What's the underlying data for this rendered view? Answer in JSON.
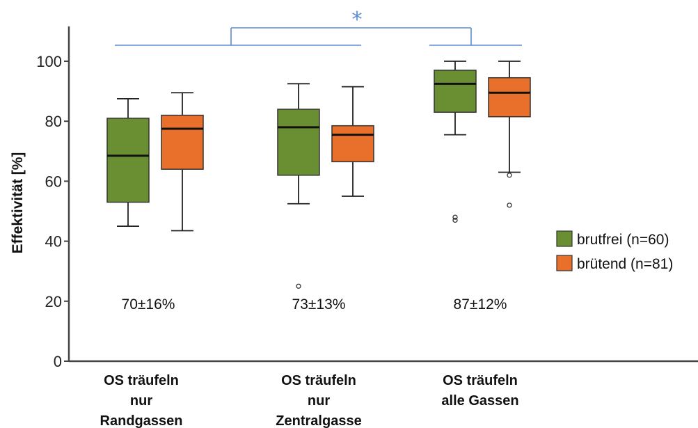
{
  "chart_data": {
    "type": "boxplot",
    "ylabel": "Effektivität [%]",
    "ylim": [
      0,
      100
    ],
    "yticks": [
      "0",
      "20",
      "40",
      "60",
      "80",
      "100"
    ],
    "categories": [
      [
        "OS träufeln",
        "nur",
        "Randgassen"
      ],
      [
        "OS träufeln",
        "nur",
        "Zentralgasse"
      ],
      [
        "OS träufeln",
        "alle Gassen"
      ]
    ],
    "series": [
      {
        "name": "brutfrei (n=60)",
        "color": "#6a8f33",
        "boxes": [
          {
            "whisker_low": 45,
            "q1": 53,
            "median": 68.5,
            "q3": 81,
            "whisker_high": 87.5,
            "outliers": []
          },
          {
            "whisker_low": 52.5,
            "q1": 62,
            "median": 78,
            "q3": 84,
            "whisker_high": 92.5,
            "outliers": [
              25
            ]
          },
          {
            "whisker_low": 75.5,
            "q1": 83,
            "median": 92.5,
            "q3": 97,
            "whisker_high": 100,
            "outliers": [
              47,
              48
            ]
          }
        ]
      },
      {
        "name": "brütend (n=81)",
        "color": "#e8702a",
        "boxes": [
          {
            "whisker_low": 43.5,
            "q1": 64,
            "median": 77.5,
            "q3": 82,
            "whisker_high": 89.5,
            "outliers": []
          },
          {
            "whisker_low": 55,
            "q1": 66.5,
            "median": 75.5,
            "q3": 78.5,
            "whisker_high": 91.5,
            "outliers": []
          },
          {
            "whisker_low": 63,
            "q1": 81.5,
            "median": 89.5,
            "q3": 94.5,
            "whisker_high": 100,
            "outliers": [
              52,
              62
            ]
          }
        ]
      }
    ],
    "annotations": [
      "70±16%",
      "73±13%",
      "87±12%"
    ],
    "significance": {
      "label": "*",
      "color": "#5b8bd4"
    },
    "legend_position": "right",
    "grid": false
  }
}
